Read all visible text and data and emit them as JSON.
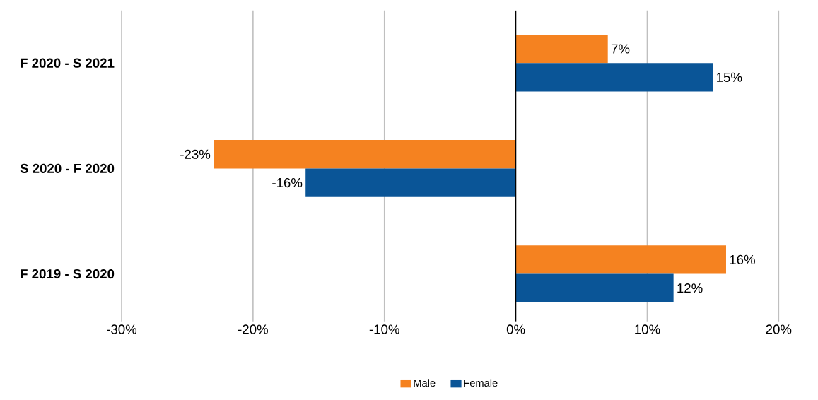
{
  "chart_data": {
    "type": "bar",
    "orientation": "horizontal",
    "categories": [
      "F 2020 - S 2021",
      "S 2020 - F 2020",
      "F 2019 - S 2020"
    ],
    "series": [
      {
        "name": "Male",
        "color": "#f58220",
        "values": [
          7,
          -23,
          16
        ],
        "value_labels": [
          "7%",
          "-23%",
          "16%"
        ]
      },
      {
        "name": "Female",
        "color": "#0a5597",
        "values": [
          15,
          -16,
          12
        ],
        "value_labels": [
          "15%",
          "-16%",
          "12%"
        ]
      }
    ],
    "xlim": [
      -30,
      20
    ],
    "xticks": [
      {
        "value": -30,
        "label": "-30%"
      },
      {
        "value": -20,
        "label": "-20%"
      },
      {
        "value": -10,
        "label": "-10%"
      },
      {
        "value": 0,
        "label": "0%"
      },
      {
        "value": 10,
        "label": "10%"
      },
      {
        "value": 20,
        "label": "20%"
      }
    ],
    "grid": "x",
    "legend": "bottom"
  }
}
